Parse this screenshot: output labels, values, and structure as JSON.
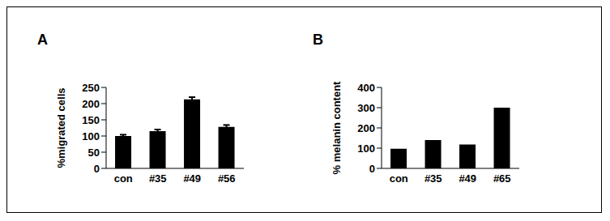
{
  "chart_data": [
    {
      "type": "bar",
      "title": "A",
      "y_label": "%migrated cells",
      "categories": [
        "con",
        "#35",
        "#49",
        "#56"
      ],
      "values": [
        100,
        115,
        213,
        128
      ],
      "errors": [
        4,
        5,
        7,
        6
      ],
      "color": "#000000",
      "ylim": [
        0,
        250
      ],
      "yticks": [
        0,
        50,
        100,
        150,
        200,
        250
      ],
      "grid": false
    },
    {
      "type": "bar",
      "title": "B",
      "y_label": "% melanin content",
      "categories": [
        "con",
        "#35",
        "#49",
        "#65"
      ],
      "values": [
        97,
        140,
        118,
        300
      ],
      "color": "#000000",
      "ylim": [
        0,
        400
      ],
      "yticks": [
        0,
        100,
        200,
        300,
        400
      ],
      "grid": false
    }
  ]
}
